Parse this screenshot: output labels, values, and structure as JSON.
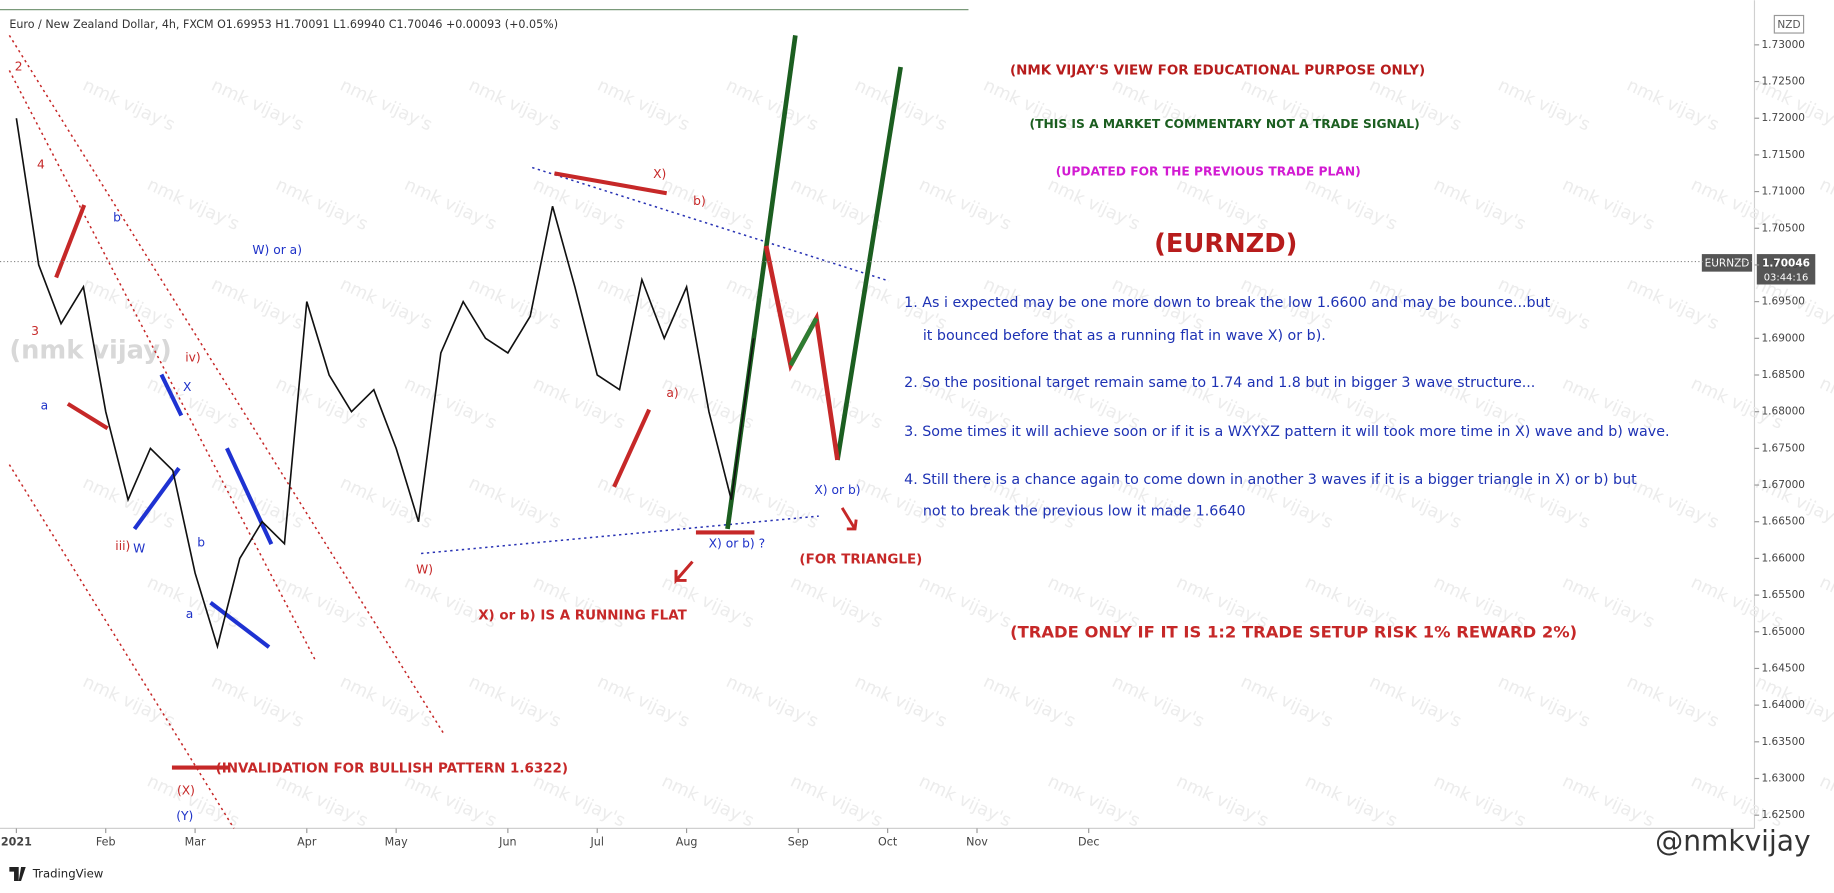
{
  "chart_data": {
    "type": "line",
    "header": "Euro / New Zealand Dollar, 4h, FXCM  O1.69953  H1.70091  L1.69940  C1.70046  +0.00093 (+0.05%)",
    "currency": "NZD",
    "symbol": "EURNZD",
    "countdown": "03:44:16",
    "last_price": 1.70046,
    "color": "#111111",
    "categories": [
      "2021",
      null,
      null,
      null,
      "Feb",
      null,
      null,
      null,
      "Mar",
      null,
      null,
      null,
      null,
      "Apr",
      null,
      null,
      null,
      "May",
      null,
      null,
      null,
      null,
      "Jun",
      null,
      null,
      null,
      "Jul",
      null,
      null,
      null,
      "Aug",
      null,
      null,
      null,
      null,
      "Sep",
      null,
      null,
      null,
      "Oct",
      null,
      null,
      null,
      "Nov",
      null,
      null,
      null,
      null,
      "Dec",
      null,
      null,
      null
    ],
    "values": [
      1.72,
      1.7,
      1.692,
      1.697,
      1.68,
      1.668,
      1.675,
      1.672,
      1.658,
      1.648,
      1.66,
      1.665,
      1.662,
      1.695,
      1.685,
      1.68,
      1.683,
      1.675,
      1.665,
      1.688,
      1.695,
      1.69,
      1.688,
      1.693,
      1.708,
      1.697,
      1.685,
      1.683,
      1.698,
      1.69,
      1.697,
      1.68,
      1.668,
      1.69,
      null,
      null,
      null,
      null,
      null,
      null,
      null,
      null,
      null,
      null,
      null,
      null,
      null,
      null,
      null,
      null,
      null,
      null
    ],
    "ylim": [
      1.6232,
      1.7348
    ],
    "yticks": [
      {
        "value": 1.625,
        "label": "1.62500"
      },
      {
        "value": 1.63,
        "label": "1.63000"
      },
      {
        "value": 1.635,
        "label": "1.63500"
      },
      {
        "value": 1.64,
        "label": "1.64000"
      },
      {
        "value": 1.645,
        "label": "1.64500"
      },
      {
        "value": 1.65,
        "label": "1.65000"
      },
      {
        "value": 1.655,
        "label": "1.65500"
      },
      {
        "value": 1.66,
        "label": "1.66000"
      },
      {
        "value": 1.665,
        "label": "1.66500"
      },
      {
        "value": 1.67,
        "label": "1.67000"
      },
      {
        "value": 1.675,
        "label": "1.67500"
      },
      {
        "value": 1.68,
        "label": "1.68000"
      },
      {
        "value": 1.685,
        "label": "1.68500"
      },
      {
        "value": 1.69,
        "label": "1.69000"
      },
      {
        "value": 1.695,
        "label": "1.69500"
      },
      {
        "value": 1.7,
        "label": "1.70000"
      },
      {
        "value": 1.705,
        "label": "1.70500"
      },
      {
        "value": 1.71,
        "label": "1.71000"
      },
      {
        "value": 1.715,
        "label": "1.71500"
      },
      {
        "value": 1.72,
        "label": "1.72000"
      },
      {
        "value": 1.725,
        "label": "1.72500"
      },
      {
        "value": 1.73,
        "label": "1.73000"
      }
    ],
    "annotations": [
      "2",
      "4",
      "3",
      "iv)",
      "iii)",
      "(X)",
      "W)",
      "X)",
      "b)",
      "a)",
      "b",
      "a",
      "X",
      "W",
      "b",
      "a",
      "(Y)",
      "W) or a)",
      "X) or b) ?",
      "X) or b)",
      "X) or b) IS A RUNNING FLAT",
      "(FOR TRIANGLE)",
      "(INVALIDATION FOR BULLISH PATTERN 1.6322)"
    ],
    "notes": [
      "(NMK VIJAY'S VIEW FOR EDUCATIONAL PURPOSE ONLY)",
      "(THIS IS A MARKET COMMENTARY NOT A TRADE SIGNAL)",
      "(UPDATED FOR THE PREVIOUS TRADE PLAN)",
      "(EURNZD)",
      "(TRADE ONLY IF IT IS 1:2 TRADE SETUP RISK 1% REWARD 2%)"
    ],
    "commentary": [
      "1. As i expected may be one more down to break the low 1.6600 and may be bounce...but",
      "it bounced before that as a running flat in wave X) or b).",
      "2. So the positional target remain same to 1.74 and 1.8 but in bigger 3 wave structure...",
      "3. Some times it will achieve soon or if it is a WXYXZ pattern it will took more time in X) wave and b) wave.",
      "4. Still there is a chance again to come down in another 3 waves if it is a bigger triangle in X) or b) but",
      "not to break the previous low it made 1.6640"
    ],
    "watermark": "nmk vijay's",
    "big_watermark": "(nmk vijay)",
    "brand": "TradingView",
    "handle": "@nmkvijay"
  }
}
